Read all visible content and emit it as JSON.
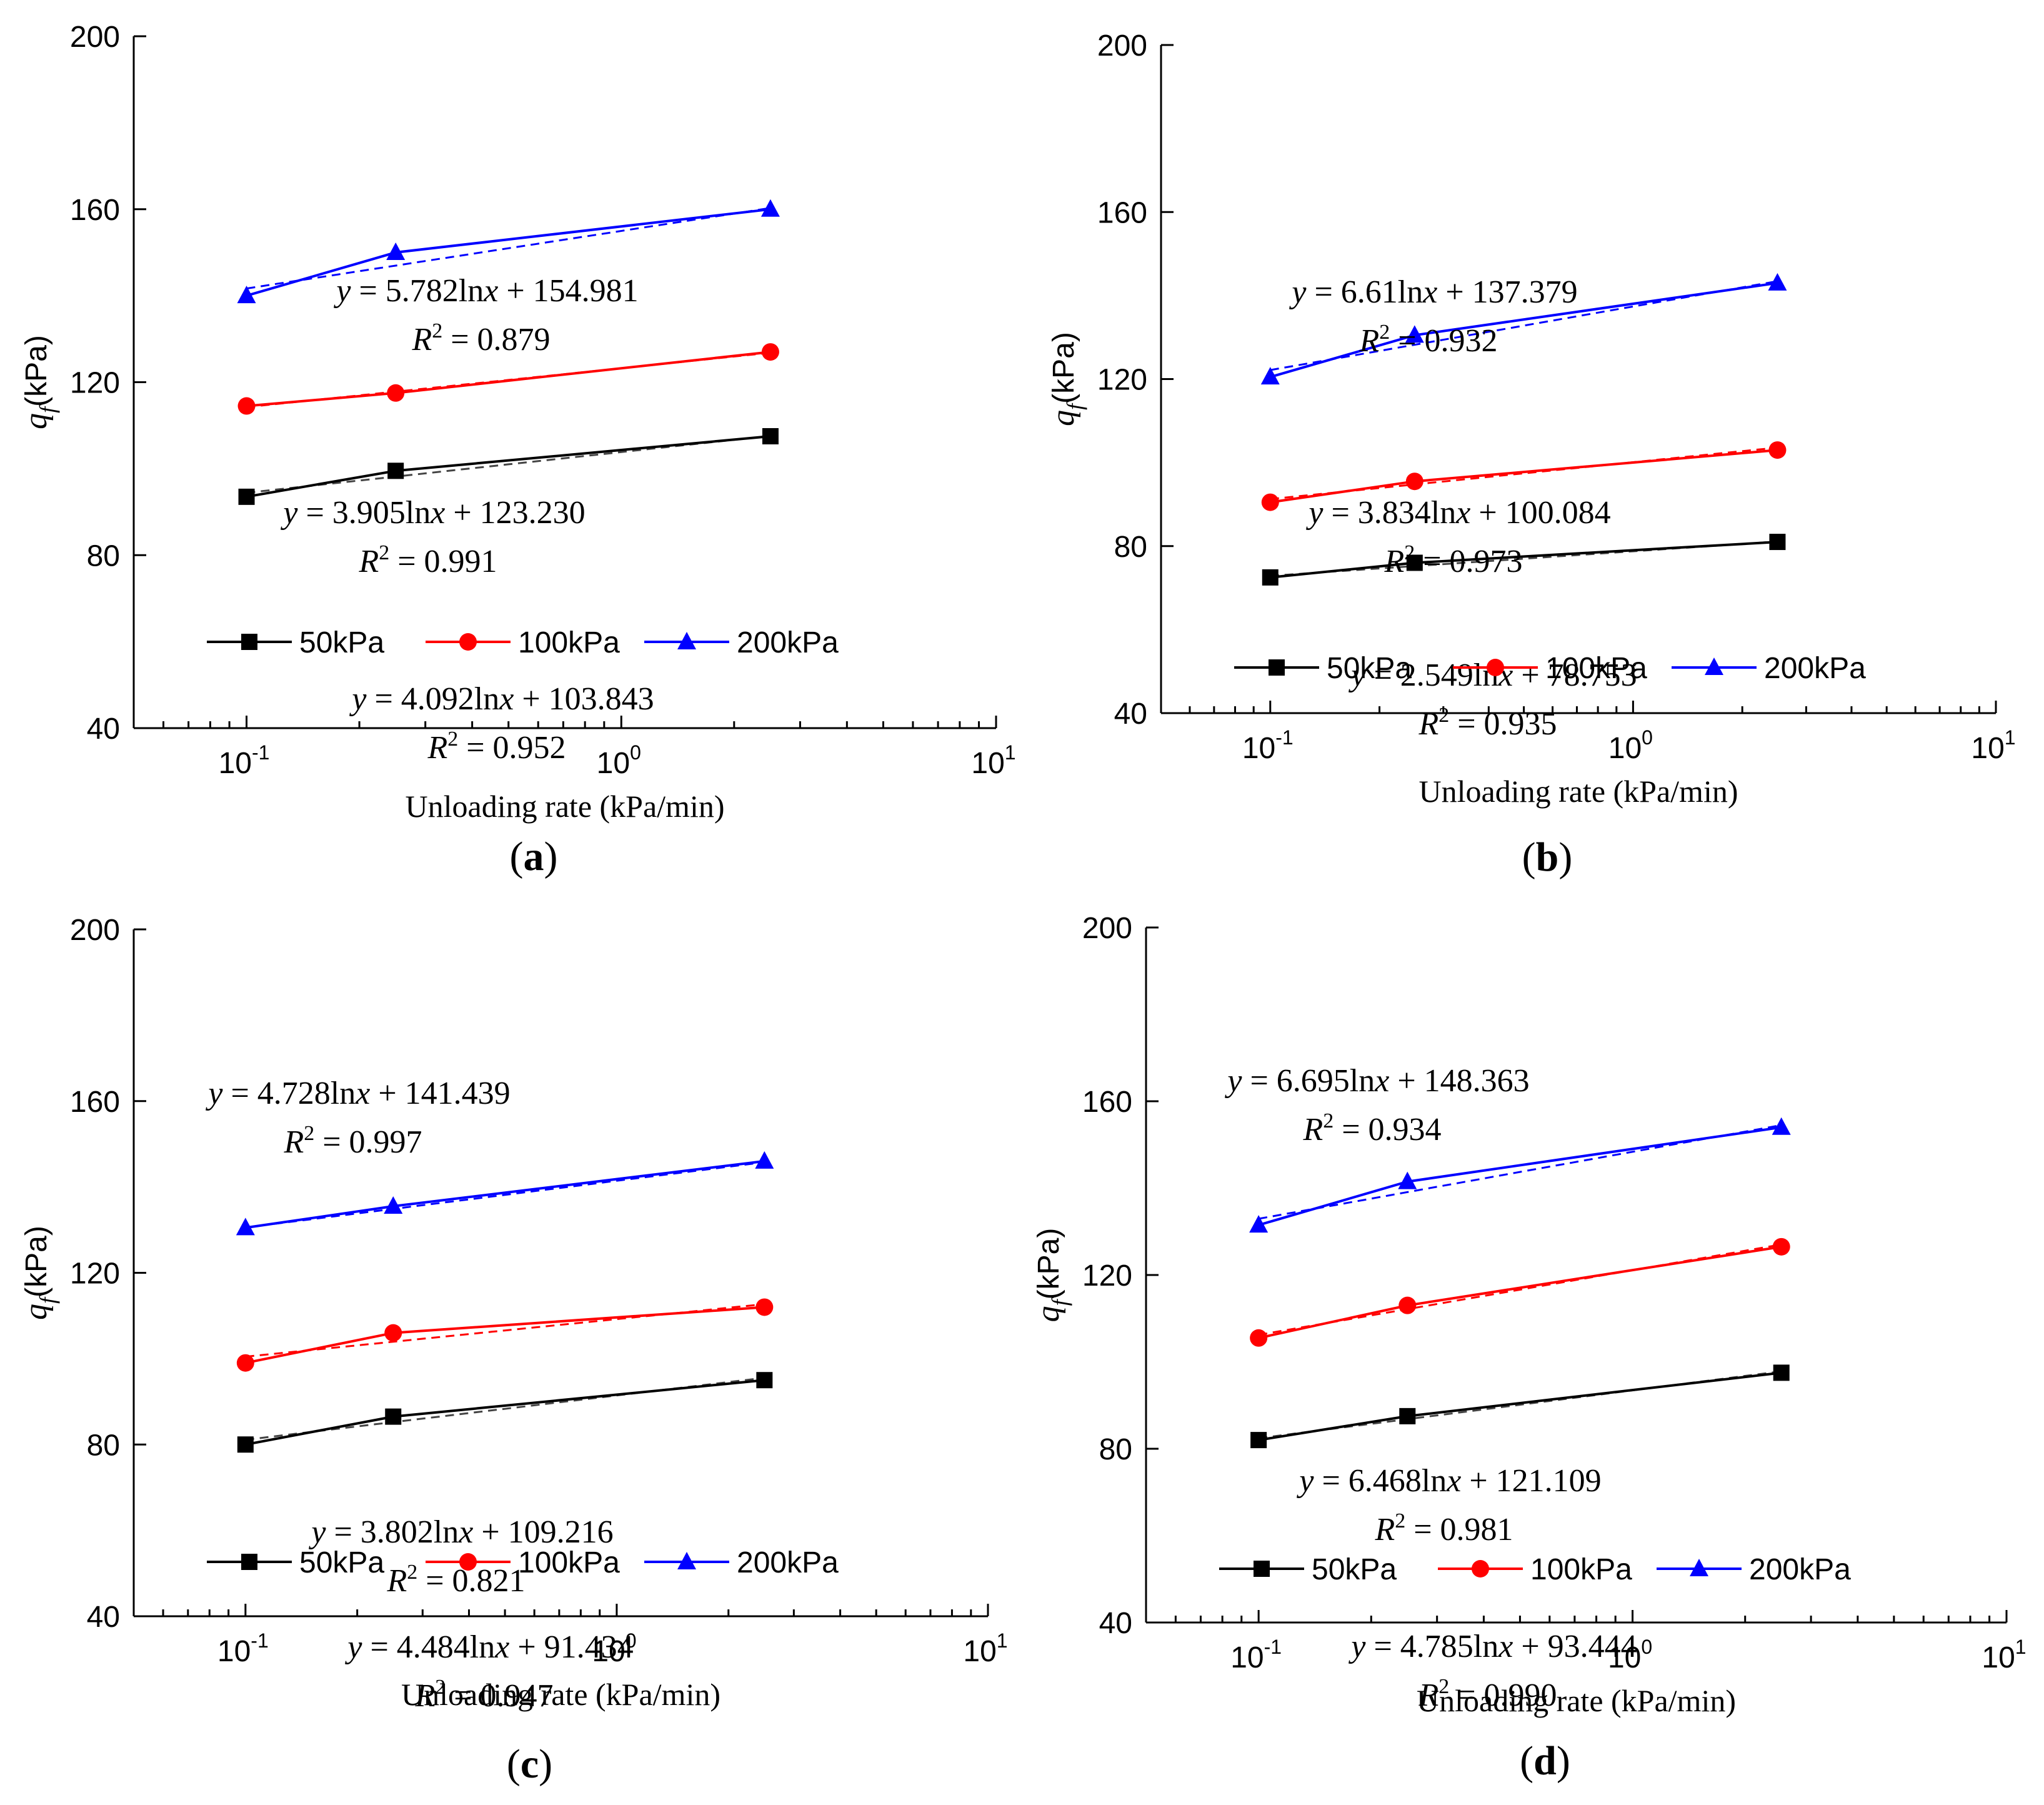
{
  "chart_data": [
    {
      "panel_label": "a",
      "type": "line",
      "xscale": "log",
      "xlim": [
        0.05,
        10
      ],
      "ylim": [
        40,
        200
      ],
      "xticks": [
        {
          "value": 0.1,
          "base": "10",
          "exp": "-1"
        },
        {
          "value": 1,
          "base": "10",
          "exp": "0"
        },
        {
          "value": 10,
          "base": "10",
          "exp": "1"
        }
      ],
      "yticks": [
        "40",
        "80",
        "120",
        "160",
        "200"
      ],
      "xlabel": "Unloading rate (kPa/min)",
      "ylabel": {
        "symbol": "q",
        "subscript": "f",
        "unit": "(kPa)"
      },
      "x": [
        0.1,
        0.25,
        2.5
      ],
      "series": [
        {
          "name": "50kPa",
          "color": "#000000",
          "marker": "square",
          "values": [
            93.5,
            99.5,
            107.5
          ],
          "fit": {
            "a": 4.092,
            "b": 103.843,
            "eq_y": "y",
            "eq_mid": " = 4.092ln",
            "eq_x": "x",
            "eq_rest": " + 103.843",
            "r2_label": "R",
            "r2_sup": "2",
            "r2_value": " = 0.952"
          }
        },
        {
          "name": "100kPa",
          "color": "#ff0000",
          "marker": "circle",
          "values": [
            114.5,
            117.5,
            127
          ],
          "fit": {
            "a": 3.905,
            "b": 123.23,
            "eq_y": "y",
            "eq_mid": " = 3.905ln",
            "eq_x": "x",
            "eq_rest": " + 123.230",
            "r2_label": "R",
            "r2_sup": "2",
            "r2_value": " = 0.991"
          }
        },
        {
          "name": "200kPa",
          "color": "#0000ff",
          "marker": "triangle",
          "values": [
            140,
            150,
            160
          ],
          "fit": {
            "a": 5.782,
            "b": 154.981,
            "eq_y": "y",
            "eq_mid": " = 5.782ln",
            "eq_x": "x",
            "eq_rest": " + 154.981",
            "r2_label": "R",
            "r2_sup": "2",
            "r2_value": " = 0.879"
          }
        }
      ]
    },
    {
      "panel_label": "b",
      "type": "line",
      "xscale": "log",
      "xlim": [
        0.05,
        10
      ],
      "ylim": [
        40,
        200
      ],
      "xticks": [
        {
          "value": 0.1,
          "base": "10",
          "exp": "-1"
        },
        {
          "value": 1,
          "base": "10",
          "exp": "0"
        },
        {
          "value": 10,
          "base": "10",
          "exp": "1"
        }
      ],
      "yticks": [
        "40",
        "80",
        "120",
        "160",
        "200"
      ],
      "xlabel": "Unloading rate (kPa/min)",
      "ylabel": {
        "symbol": "q",
        "subscript": "f",
        "unit": "(kPa)"
      },
      "x": [
        0.1,
        0.25,
        2.5
      ],
      "series": [
        {
          "name": "50kPa",
          "color": "#000000",
          "marker": "square",
          "values": [
            72.5,
            76,
            81
          ],
          "fit": {
            "a": 2.549,
            "b": 78.753,
            "eq_y": "y",
            "eq_mid": " = 2.549ln",
            "eq_x": "x",
            "eq_rest": " + 78.753",
            "r2_label": "R",
            "r2_sup": "2",
            "r2_value": " = 0.935"
          }
        },
        {
          "name": "100kPa",
          "color": "#ff0000",
          "marker": "circle",
          "values": [
            90.5,
            95.5,
            103
          ],
          "fit": {
            "a": 3.834,
            "b": 100.084,
            "eq_y": "y",
            "eq_mid": " = 3.834ln",
            "eq_x": "x",
            "eq_rest": " + 100.084",
            "r2_label": "R",
            "r2_sup": "2",
            "r2_value": " = 0.973"
          }
        },
        {
          "name": "200kPa",
          "color": "#0000ff",
          "marker": "triangle",
          "values": [
            120.5,
            130.5,
            143
          ],
          "fit": {
            "a": 6.61,
            "b": 137.379,
            "eq_y": "y",
            "eq_mid": " = 6.61ln",
            "eq_x": "x",
            "eq_rest": " + 137.379",
            "r2_label": "R",
            "r2_sup": "2",
            "r2_value": " = 0.932"
          }
        }
      ]
    },
    {
      "panel_label": "c",
      "type": "line",
      "xscale": "log",
      "xlim": [
        0.05,
        10
      ],
      "ylim": [
        40,
        200
      ],
      "xticks": [
        {
          "value": 0.1,
          "base": "10",
          "exp": "-1"
        },
        {
          "value": 1,
          "base": "10",
          "exp": "0"
        },
        {
          "value": 10,
          "base": "10",
          "exp": "1"
        }
      ],
      "yticks": [
        "40",
        "80",
        "120",
        "160",
        "200"
      ],
      "xlabel": "Unloading rate (kPa/min)",
      "ylabel": {
        "symbol": "q",
        "subscript": "f",
        "unit": "(kPa)"
      },
      "x": [
        0.1,
        0.25,
        2.5
      ],
      "series": [
        {
          "name": "50kPa",
          "color": "#000000",
          "marker": "square",
          "values": [
            80,
            86.5,
            95
          ],
          "fit": {
            "a": 4.484,
            "b": 91.434,
            "eq_y": "y",
            "eq_mid": " = 4.484ln",
            "eq_x": "x",
            "eq_rest": " + 91.434",
            "r2_label": "R",
            "r2_sup": "2",
            "r2_value": " = 0.947"
          }
        },
        {
          "name": "100kPa",
          "color": "#ff0000",
          "marker": "circle",
          "values": [
            99,
            106,
            112
          ],
          "fit": {
            "a": 3.802,
            "b": 109.216,
            "eq_y": "y",
            "eq_mid": " = 3.802ln",
            "eq_x": "x",
            "eq_rest": " + 109.216",
            "r2_label": "R",
            "r2_sup": "2",
            "r2_value": " = 0.821"
          }
        },
        {
          "name": "200kPa",
          "color": "#0000ff",
          "marker": "triangle",
          "values": [
            130.5,
            135.5,
            146
          ],
          "fit": {
            "a": 4.728,
            "b": 141.439,
            "eq_y": "y",
            "eq_mid": " = 4.728ln",
            "eq_x": "x",
            "eq_rest": " + 141.439",
            "r2_label": "R",
            "r2_sup": "2",
            "r2_value": " =  0.997"
          }
        }
      ]
    },
    {
      "panel_label": "d",
      "type": "line",
      "xscale": "log",
      "xlim": [
        0.05,
        10
      ],
      "ylim": [
        40,
        200
      ],
      "xticks": [
        {
          "value": 0.1,
          "base": "10",
          "exp": "-1"
        },
        {
          "value": 1,
          "base": "10",
          "exp": "0"
        },
        {
          "value": 10,
          "base": "10",
          "exp": "1"
        }
      ],
      "yticks": [
        "40",
        "80",
        "120",
        "160",
        "200"
      ],
      "xlabel": "Unloading rate (kPa/min)",
      "ylabel": {
        "symbol": "q",
        "subscript": "f",
        "unit": "(kPa)"
      },
      "x": [
        0.1,
        0.25,
        2.5
      ],
      "series": [
        {
          "name": "50kPa",
          "color": "#000000",
          "marker": "square",
          "values": [
            82,
            87.5,
            97.5
          ],
          "fit": {
            "a": 4.785,
            "b": 93.444,
            "eq_y": "y",
            "eq_mid": " = 4.785ln",
            "eq_x": "x",
            "eq_rest": " + 93.444",
            "r2_label": "R",
            "r2_sup": "2",
            "r2_value": " = 0.990"
          }
        },
        {
          "name": "100kPa",
          "color": "#ff0000",
          "marker": "circle",
          "values": [
            105.5,
            113,
            126.5
          ],
          "fit": {
            "a": 6.468,
            "b": 121.109,
            "eq_y": "y",
            "eq_mid": " = 6.468ln",
            "eq_x": "x",
            "eq_rest": " + 121.109",
            "r2_label": "R",
            "r2_sup": "2",
            "r2_value": " = 0.981"
          }
        },
        {
          "name": "200kPa",
          "color": "#0000ff",
          "marker": "triangle",
          "values": [
            131.5,
            141.5,
            154
          ],
          "fit": {
            "a": 6.695,
            "b": 148.363,
            "eq_y": "y",
            "eq_mid": " = 6.695ln",
            "eq_x": "x",
            "eq_rest": " + 148.363",
            "r2_label": "R",
            "r2_sup": "2",
            "r2_value": " = 0.934"
          }
        }
      ]
    }
  ]
}
